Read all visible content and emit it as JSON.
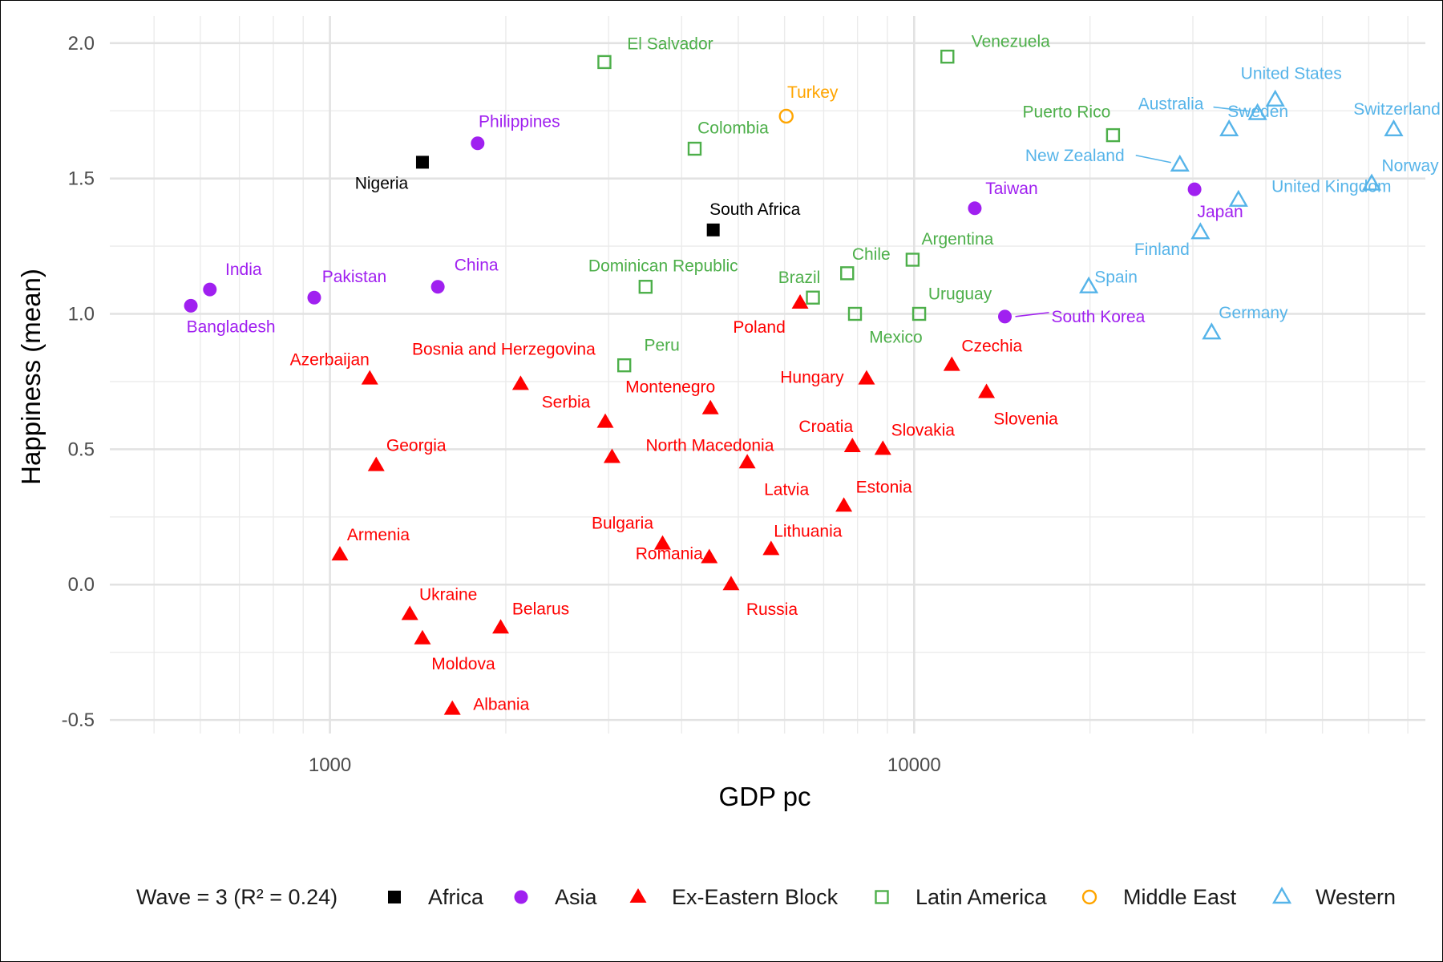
{
  "chart_data": {
    "type": "scatter",
    "xlabel": "GDP pc",
    "ylabel": "Happiness (mean)",
    "xscale": "log10",
    "xlim": [
      420,
      75000
    ],
    "ylim": [
      -0.55,
      2.1
    ],
    "x_ticks": [
      1000,
      10000
    ],
    "x_tick_labels": [
      "1000",
      "10000"
    ],
    "y_ticks": [
      -0.5,
      0.0,
      0.5,
      1.0,
      1.5,
      2.0
    ],
    "y_tick_labels": [
      "-0.5",
      "0.0",
      "0.5",
      "1.0",
      "1.5",
      "2.0"
    ],
    "grid": true,
    "legend_position": "bottom",
    "legend_title": "Wave = 3 (R² = 0.24)",
    "groups": [
      {
        "name": "Africa",
        "shape": "square-filled",
        "color": "#000000"
      },
      {
        "name": "Asia",
        "shape": "circle-filled",
        "color": "#a020f0"
      },
      {
        "name": "Ex-Eastern Block",
        "shape": "triangle-filled",
        "color": "#ff0000"
      },
      {
        "name": "Latin America",
        "shape": "square-open",
        "color": "#4daf4a"
      },
      {
        "name": "Middle East",
        "shape": "circle-open",
        "color": "#ffa500"
      },
      {
        "name": "Western",
        "shape": "triangle-open",
        "color": "#56b4e9"
      }
    ],
    "points": [
      {
        "label": "Nigeria",
        "group": "Africa",
        "x": 1440,
        "y": 1.56
      },
      {
        "label": "South Africa",
        "group": "Africa",
        "x": 4530,
        "y": 1.31
      },
      {
        "label": "Philippines",
        "group": "Asia",
        "x": 1790,
        "y": 1.63
      },
      {
        "label": "India",
        "group": "Asia",
        "x": 623,
        "y": 1.09
      },
      {
        "label": "Bangladesh",
        "group": "Asia",
        "x": 578,
        "y": 1.03
      },
      {
        "label": "Pakistan",
        "group": "Asia",
        "x": 940,
        "y": 1.06
      },
      {
        "label": "China",
        "group": "Asia",
        "x": 1530,
        "y": 1.1
      },
      {
        "label": "Taiwan",
        "group": "Asia",
        "x": 12700,
        "y": 1.39
      },
      {
        "label": "South Korea",
        "group": "Asia",
        "x": 14300,
        "y": 0.99
      },
      {
        "label": "Japan",
        "group": "Asia",
        "x": 30200,
        "y": 1.46
      },
      {
        "label": "Azerbaijan",
        "group": "Ex-Eastern Block",
        "x": 1170,
        "y": 0.76
      },
      {
        "label": "Georgia",
        "group": "Ex-Eastern Block",
        "x": 1200,
        "y": 0.44
      },
      {
        "label": "Armenia",
        "group": "Ex-Eastern Block",
        "x": 1040,
        "y": 0.11
      },
      {
        "label": "Ukraine",
        "group": "Ex-Eastern Block",
        "x": 1370,
        "y": -0.11
      },
      {
        "label": "Moldova",
        "group": "Ex-Eastern Block",
        "x": 1440,
        "y": -0.2
      },
      {
        "label": "Albania",
        "group": "Ex-Eastern Block",
        "x": 1620,
        "y": -0.46
      },
      {
        "label": "Belarus",
        "group": "Ex-Eastern Block",
        "x": 1960,
        "y": -0.16
      },
      {
        "label": "Bosnia and Herzegovina",
        "group": "Ex-Eastern Block",
        "x": 2120,
        "y": 0.74
      },
      {
        "label": "Serbia",
        "group": "Ex-Eastern Block",
        "x": 2960,
        "y": 0.6
      },
      {
        "label": "North Macedonia",
        "group": "Ex-Eastern Block",
        "x": 3040,
        "y": 0.47
      },
      {
        "label": "Montenegro",
        "group": "Ex-Eastern Block",
        "x": 4480,
        "y": 0.65
      },
      {
        "label": "Bulgaria",
        "group": "Ex-Eastern Block",
        "x": 3710,
        "y": 0.15
      },
      {
        "label": "Romania",
        "group": "Ex-Eastern Block",
        "x": 4460,
        "y": 0.1
      },
      {
        "label": "Russia",
        "group": "Ex-Eastern Block",
        "x": 4860,
        "y": 0.0
      },
      {
        "label": "Latvia",
        "group": "Ex-Eastern Block",
        "x": 5180,
        "y": 0.45
      },
      {
        "label": "Lithuania",
        "group": "Ex-Eastern Block",
        "x": 5690,
        "y": 0.13
      },
      {
        "label": "Poland",
        "group": "Ex-Eastern Block",
        "x": 6380,
        "y": 1.04
      },
      {
        "label": "Hungary",
        "group": "Ex-Eastern Block",
        "x": 8290,
        "y": 0.76
      },
      {
        "label": "Croatia",
        "group": "Ex-Eastern Block",
        "x": 7840,
        "y": 0.51
      },
      {
        "label": "Slovakia",
        "group": "Ex-Eastern Block",
        "x": 8840,
        "y": 0.5
      },
      {
        "label": "Estonia",
        "group": "Ex-Eastern Block",
        "x": 7580,
        "y": 0.29
      },
      {
        "label": "Czechia",
        "group": "Ex-Eastern Block",
        "x": 11600,
        "y": 0.81
      },
      {
        "label": "Slovenia",
        "group": "Ex-Eastern Block",
        "x": 13300,
        "y": 0.71
      },
      {
        "label": "El Salvador",
        "group": "Latin America",
        "x": 2950,
        "y": 1.93
      },
      {
        "label": "Venezuela",
        "group": "Latin America",
        "x": 11400,
        "y": 1.95
      },
      {
        "label": "Colombia",
        "group": "Latin America",
        "x": 4210,
        "y": 1.61
      },
      {
        "label": "Puerto Rico",
        "group": "Latin America",
        "x": 21900,
        "y": 1.66
      },
      {
        "label": "Dominican Republic",
        "group": "Latin America",
        "x": 3470,
        "y": 1.1
      },
      {
        "label": "Chile",
        "group": "Latin America",
        "x": 7680,
        "y": 1.15
      },
      {
        "label": "Argentina",
        "group": "Latin America",
        "x": 9940,
        "y": 1.2
      },
      {
        "label": "Brazil",
        "group": "Latin America",
        "x": 6710,
        "y": 1.06
      },
      {
        "label": "Mexico",
        "group": "Latin America",
        "x": 7920,
        "y": 1.0
      },
      {
        "label": "Uruguay",
        "group": "Latin America",
        "x": 10200,
        "y": 1.0
      },
      {
        "label": "Peru",
        "group": "Latin America",
        "x": 3190,
        "y": 0.81
      },
      {
        "label": "Turkey",
        "group": "Middle East",
        "x": 6040,
        "y": 1.73
      },
      {
        "label": "United States",
        "group": "Western",
        "x": 41500,
        "y": 1.79
      },
      {
        "label": "Australia",
        "group": "Western",
        "x": 38700,
        "y": 1.74
      },
      {
        "label": "Switzerland",
        "group": "Western",
        "x": 66200,
        "y": 1.68
      },
      {
        "label": "New Zealand",
        "group": "Western",
        "x": 28500,
        "y": 1.55
      },
      {
        "label": "Sweden",
        "group": "Western",
        "x": 34600,
        "y": 1.68
      },
      {
        "label": "Norway",
        "group": "Western",
        "x": 60700,
        "y": 1.48
      },
      {
        "label": "United Kingdom",
        "group": "Western",
        "x": 35900,
        "y": 1.42
      },
      {
        "label": "Finland",
        "group": "Western",
        "x": 30900,
        "y": 1.3
      },
      {
        "label": "Spain",
        "group": "Western",
        "x": 19900,
        "y": 1.1
      },
      {
        "label": "Germany",
        "group": "Western",
        "x": 32300,
        "y": 0.93
      }
    ]
  }
}
